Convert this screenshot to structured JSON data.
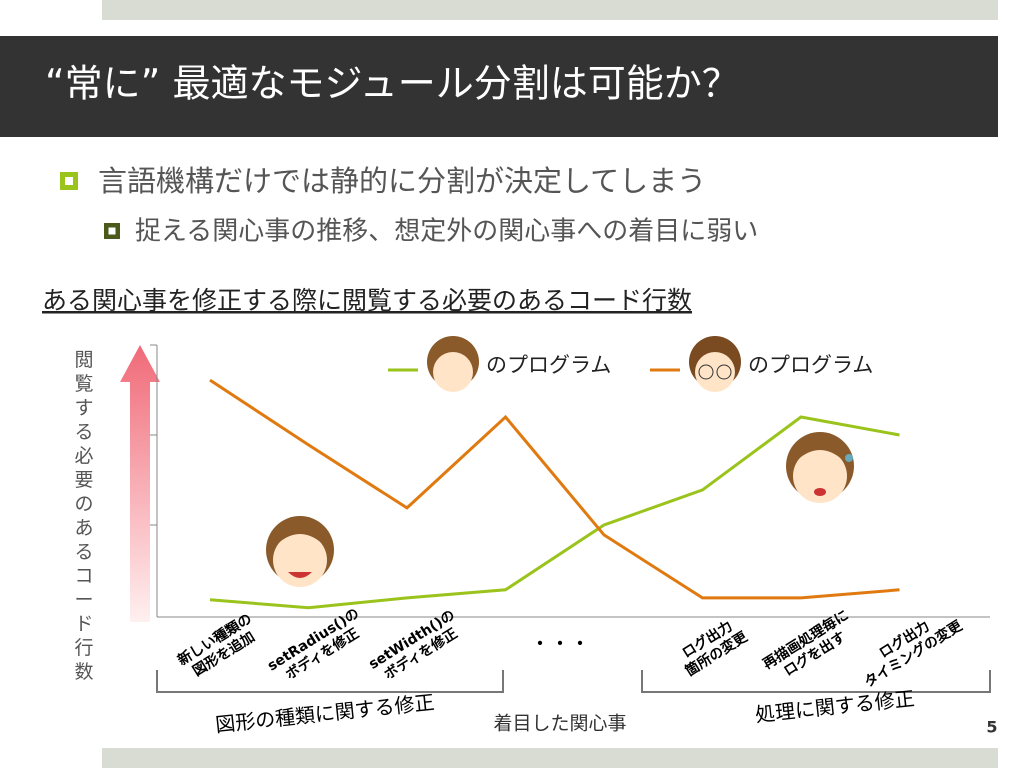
{
  "slide": {
    "title": "“常に” 最適なモジュール分割は可能か？",
    "bullets": [
      "言語機構だけでは静的に分割が決定してしまう"
    ],
    "sub_bullets": [
      "捉える関心事の推移、想定外の関心事への着目に弱い"
    ],
    "page_number": "5"
  },
  "chart_data": {
    "type": "line",
    "title": "ある関心事を修正する際に閲覧する必要のあるコード行数",
    "x_label": "着目した関心事",
    "y_label": "閲覧する必要のあるコード行数",
    "categories": [
      "新しい種類の\n図形を追加",
      "setRadius()の\nボディを修正",
      "setWidth()の\nボディを修正",
      null,
      null,
      "ログ出力\n箇所の変更",
      "再描画処理毎に\nログを出す",
      "ログ出力\nタイミングの変更"
    ],
    "series": [
      {
        "name": "のプログラム",
        "color": "#9ac31c",
        "values": [
          0.17,
          0.08,
          0.19,
          0.28,
          1.0,
          1.39,
          2.2,
          2.0
        ]
      },
      {
        "name": "のプログラム",
        "color": "#e07a10",
        "values": [
          2.61,
          1.89,
          1.19,
          2.2,
          0.89,
          0.19,
          0.19,
          0.28
        ]
      }
    ],
    "ylim": [
      0,
      3
    ],
    "annotations": [
      "・・・",
      "図形の種類に関する修正",
      "処理に関する修正"
    ]
  }
}
